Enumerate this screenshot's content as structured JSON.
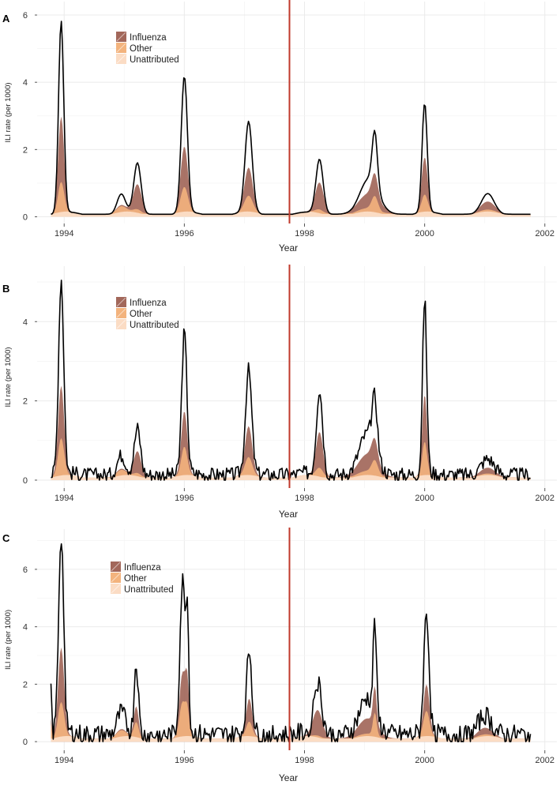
{
  "chart_data": [
    {
      "panel": "A",
      "type": "area",
      "xlabel": "Year",
      "ylabel": "ILI rate (per 1000)",
      "xlim": [
        1993.55,
        2002.2
      ],
      "ylim": [
        -0.2,
        6.4
      ],
      "x_ticks": [
        1994,
        1996,
        1998,
        2000,
        2002
      ],
      "y_ticks": [
        0,
        2,
        4,
        6
      ],
      "vline_x": 1997.75,
      "vline_color": "#c0392b",
      "legend": [
        "Influenza",
        "Other",
        "Unattributed"
      ],
      "colors": {
        "Influenza": "#a2675a",
        "Other": "#f3b37d",
        "Unattributed": "#fbdcc4",
        "observed": "#000000"
      },
      "baseline": 0.12,
      "noise": 0.0,
      "flu_ratio": 0.62,
      "seasons": [
        {
          "peak": 1993.95,
          "height": 5.7,
          "width": 0.05,
          "flu": 0.55
        },
        {
          "peak": 1994.95,
          "height": 0.55,
          "width": 0.08,
          "flu": 0.1
        },
        {
          "peak": 1995.22,
          "height": 1.5,
          "width": 0.07,
          "flu": 0.8
        },
        {
          "peak": 1996.0,
          "height": 4.05,
          "width": 0.06,
          "flu": 0.48
        },
        {
          "peak": 1997.07,
          "height": 2.7,
          "width": 0.07,
          "flu": 0.5
        },
        {
          "peak": 1998.25,
          "height": 1.62,
          "width": 0.07,
          "flu": 0.8
        },
        {
          "peak": 1999.08,
          "height": 1.0,
          "width": 0.18,
          "flu": 0.7
        },
        {
          "peak": 1999.17,
          "height": 1.6,
          "width": 0.05,
          "flu": 0.3
        },
        {
          "peak": 2000.0,
          "height": 3.25,
          "width": 0.05,
          "flu": 0.55
        },
        {
          "peak": 2001.05,
          "height": 0.55,
          "width": 0.12,
          "flu": 0.7
        }
      ]
    },
    {
      "panel": "B",
      "type": "area",
      "xlabel": "Year",
      "ylabel": "ILI rate (per 1000)",
      "xlim": [
        1993.55,
        2002.2
      ],
      "ylim": [
        -0.2,
        5.4
      ],
      "x_ticks": [
        1994,
        1996,
        1998,
        2000,
        2002
      ],
      "y_ticks": [
        0,
        2,
        4
      ],
      "vline_x": 1997.75,
      "vline_color": "#c0392b",
      "legend": [
        "Influenza",
        "Other",
        "Unattributed"
      ],
      "colors": {
        "Influenza": "#a2675a",
        "Other": "#f3b37d",
        "Unattributed": "#fbdcc4",
        "observed": "#000000"
      },
      "baseline": 0.1,
      "noise": 0.18,
      "flu_ratio": 0.6,
      "seasons": [
        {
          "peak": 1993.95,
          "height": 4.9,
          "width": 0.05,
          "flu": 0.45
        },
        {
          "peak": 1994.95,
          "height": 0.45,
          "width": 0.08,
          "flu": 0.1
        },
        {
          "peak": 1995.22,
          "height": 1.15,
          "width": 0.06,
          "flu": 0.8
        },
        {
          "peak": 1996.0,
          "height": 3.55,
          "width": 0.05,
          "flu": 0.42
        },
        {
          "peak": 1997.07,
          "height": 2.6,
          "width": 0.06,
          "flu": 0.5
        },
        {
          "peak": 1998.25,
          "height": 2.15,
          "width": 0.06,
          "flu": 0.7
        },
        {
          "peak": 1999.05,
          "height": 1.0,
          "width": 0.16,
          "flu": 0.7
        },
        {
          "peak": 1999.17,
          "height": 1.3,
          "width": 0.05,
          "flu": 0.3
        },
        {
          "peak": 2000.0,
          "height": 4.4,
          "width": 0.04,
          "flu": 0.45
        },
        {
          "peak": 2001.05,
          "height": 0.35,
          "width": 0.12,
          "flu": 0.7
        }
      ]
    },
    {
      "panel": "C",
      "type": "area",
      "xlabel": "Year",
      "ylabel": "ILI rate (per 1000)",
      "xlim": [
        1993.55,
        2002.2
      ],
      "ylim": [
        -0.3,
        7.4
      ],
      "x_ticks": [
        1994,
        1996,
        1998,
        2000,
        2002
      ],
      "y_ticks": [
        0,
        2,
        4,
        6
      ],
      "vline_x": 1997.75,
      "vline_color": "#c0392b",
      "legend": [
        "Influenza",
        "Other",
        "Unattributed"
      ],
      "colors": {
        "Influenza": "#a2675a",
        "Other": "#f3b37d",
        "Unattributed": "#fbdcc4",
        "observed": "#000000"
      },
      "baseline": 0.15,
      "noise": 0.35,
      "flu_ratio": 0.55,
      "seasons": [
        {
          "peak": 1993.77,
          "height": 2.1,
          "width": 0.02,
          "flu": 0.2
        },
        {
          "peak": 1993.95,
          "height": 6.9,
          "width": 0.05,
          "flu": 0.5
        },
        {
          "peak": 1994.95,
          "height": 0.7,
          "width": 0.08,
          "flu": 0.1
        },
        {
          "peak": 1995.2,
          "height": 2.5,
          "width": 0.04,
          "flu": 0.4
        },
        {
          "peak": 1995.97,
          "height": 5.25,
          "width": 0.05,
          "flu": 0.35
        },
        {
          "peak": 1996.05,
          "height": 3.8,
          "width": 0.03,
          "flu": 0.4
        },
        {
          "peak": 1997.08,
          "height": 2.9,
          "width": 0.05,
          "flu": 0.5
        },
        {
          "peak": 1998.22,
          "height": 1.8,
          "width": 0.08,
          "flu": 0.9
        },
        {
          "peak": 1999.05,
          "height": 1.2,
          "width": 0.16,
          "flu": 0.8
        },
        {
          "peak": 1999.17,
          "height": 3.2,
          "width": 0.03,
          "flu": 0.3
        },
        {
          "peak": 2000.03,
          "height": 4.2,
          "width": 0.05,
          "flu": 0.4
        },
        {
          "peak": 2001.0,
          "height": 0.6,
          "width": 0.12,
          "flu": 0.7
        }
      ]
    }
  ]
}
